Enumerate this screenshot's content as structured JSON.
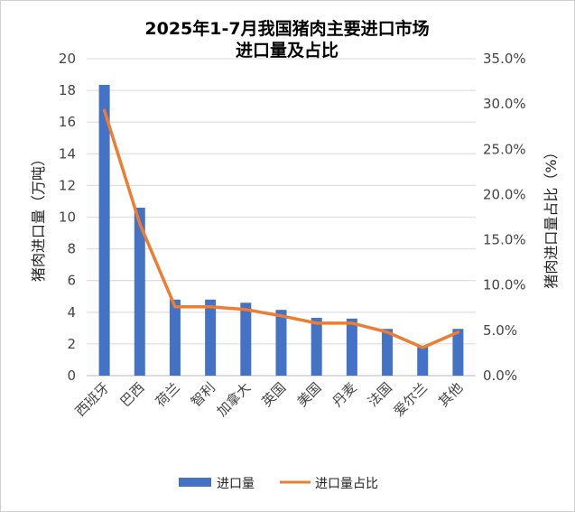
{
  "chart_data": {
    "type": "bar+line",
    "title": [
      "2025年1-7月我国猪肉主要进口市场",
      "进口量及占比"
    ],
    "categories": [
      "西班牙",
      "巴西",
      "荷兰",
      "智利",
      "加拿大",
      "英国",
      "美国",
      "丹麦",
      "法国",
      "爱尔兰",
      "其他"
    ],
    "series": [
      {
        "name": "进口量",
        "type": "bar",
        "axis": "left",
        "color": "#4472C4",
        "values": [
          18.35,
          10.6,
          4.8,
          4.8,
          4.6,
          4.15,
          3.65,
          3.6,
          2.95,
          1.85,
          2.95
        ]
      },
      {
        "name": "进口量占比",
        "type": "line",
        "axis": "right",
        "color": "#ED7D31",
        "values": [
          29.3,
          16.8,
          7.6,
          7.6,
          7.3,
          6.6,
          5.8,
          5.8,
          4.8,
          3.1,
          4.8
        ]
      }
    ],
    "ylabel": "猪肉进口量（万吨）",
    "y2label": "猪肉进口量占比（%）",
    "ylim": [
      0,
      20
    ],
    "y2lim": [
      0,
      35
    ],
    "yticks": [
      "0",
      "2",
      "4",
      "6",
      "8",
      "10",
      "12",
      "14",
      "16",
      "18",
      "20"
    ],
    "y2ticks": [
      "0.0%",
      "5.0%",
      "10.0%",
      "15.0%",
      "20.0%",
      "25.0%",
      "30.0%",
      "35.0%"
    ],
    "grid": true,
    "legend": "bottom"
  }
}
